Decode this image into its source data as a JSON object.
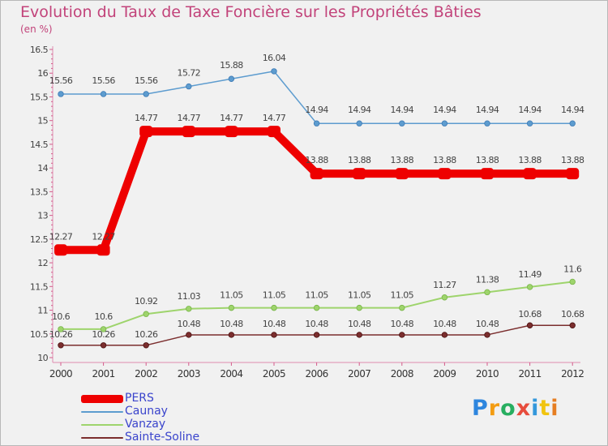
{
  "chart_data": {
    "type": "line",
    "title": "Evolution du Taux de Taxe Foncière sur les Propriétés Bâties",
    "ylabel": "(en %)",
    "xlabel": "",
    "ylim": [
      10,
      16.5
    ],
    "yticks": [
      "10",
      "10.5",
      "11",
      "11.5",
      "12",
      "12.5",
      "13",
      "13.5",
      "14",
      "14.5",
      "15",
      "15.5",
      "16",
      "16.5"
    ],
    "categories": [
      "2000",
      "2001",
      "2002",
      "2003",
      "2004",
      "2005",
      "2006",
      "2007",
      "2008",
      "2009",
      "2010",
      "2011",
      "2012"
    ],
    "legend_position": "bottom-left",
    "grid": false,
    "series": [
      {
        "name": "PERS",
        "color": "#ee0000",
        "width": 10,
        "values": [
          12.27,
          12.27,
          14.77,
          14.77,
          14.77,
          14.77,
          13.88,
          13.88,
          13.88,
          13.88,
          13.88,
          13.88,
          13.88
        ],
        "labels": [
          "12.27",
          "12.27",
          "14.77",
          "14.77",
          "14.77",
          "14.77",
          "13.88",
          "13.88",
          "13.88",
          "13.88",
          "13.88",
          "13.88",
          "13.88"
        ]
      },
      {
        "name": "Caunay",
        "color": "#5d9ccf",
        "width": 1.5,
        "values": [
          15.56,
          15.56,
          15.56,
          15.72,
          15.88,
          16.04,
          14.94,
          14.94,
          14.94,
          14.94,
          14.94,
          14.94,
          14.94
        ],
        "labels": [
          "15.56",
          "15.56",
          "15.56",
          "15.72",
          "15.88",
          "16.04",
          "14.94",
          "14.94",
          "14.94",
          "14.94",
          "14.94",
          "14.94",
          "14.94"
        ]
      },
      {
        "name": "Vanzay",
        "color": "#9ed46c",
        "width": 2,
        "values": [
          10.6,
          10.6,
          10.92,
          11.03,
          11.05,
          11.05,
          11.05,
          11.05,
          11.05,
          11.27,
          11.38,
          11.49,
          11.6
        ],
        "labels": [
          "10.6",
          "10.6",
          "10.92",
          "11.03",
          "11.05",
          "11.05",
          "11.05",
          "11.05",
          "11.05",
          "11.27",
          "11.38",
          "11.49",
          "11.6"
        ]
      },
      {
        "name": "Sainte-Soline",
        "color": "#7b2e2e",
        "width": 1.5,
        "values": [
          10.26,
          10.26,
          10.26,
          10.48,
          10.48,
          10.48,
          10.48,
          10.48,
          10.48,
          10.48,
          10.48,
          10.68,
          10.68
        ],
        "labels": [
          "10.26",
          "10.26",
          "10.26",
          "10.48",
          "10.48",
          "10.48",
          "10.48",
          "10.48",
          "10.48",
          "10.48",
          "10.48",
          "10.68",
          "10.68"
        ]
      }
    ]
  },
  "logo": {
    "letters": [
      "P",
      "r",
      "o",
      "x",
      "i",
      "t",
      "i"
    ]
  }
}
